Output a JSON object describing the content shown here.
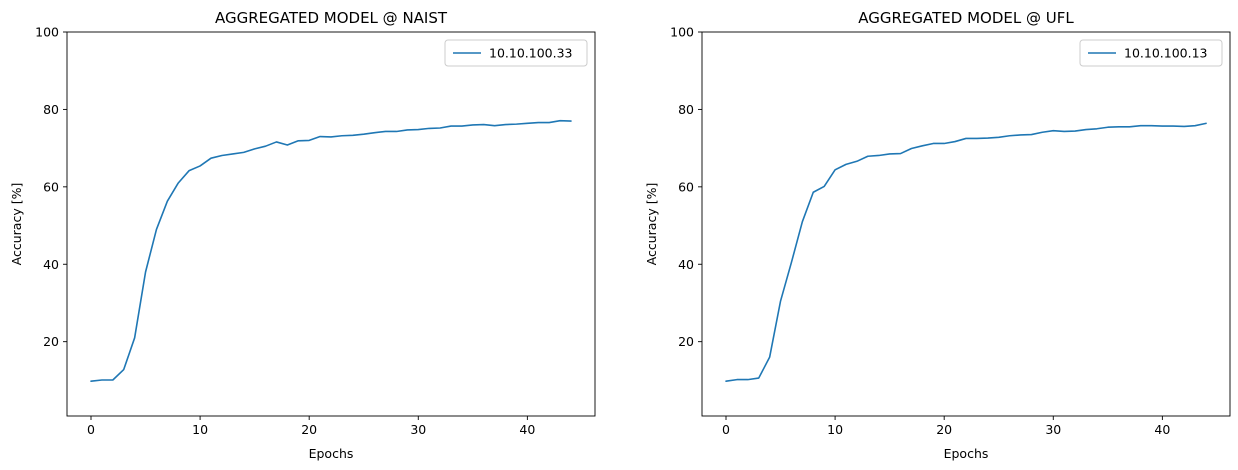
{
  "chart_data": [
    {
      "type": "line",
      "title": "AGGREGATED MODEL @ NAIST",
      "xlabel": "Epochs",
      "ylabel": "Accuracy [%]",
      "xlim": [
        -2.2,
        46.2
      ],
      "ylim": [
        0.8,
        100
      ],
      "xticks": [
        0,
        10,
        20,
        30,
        40
      ],
      "yticks": [
        20,
        40,
        60,
        80,
        100
      ],
      "legend": "top-right",
      "series": [
        {
          "name": "10.10.100.33",
          "color": "#1f77b4",
          "x": [
            0,
            1,
            2,
            3,
            4,
            5,
            6,
            7,
            8,
            9,
            10,
            11,
            12,
            13,
            14,
            15,
            16,
            17,
            18,
            19,
            20,
            21,
            22,
            23,
            24,
            25,
            26,
            27,
            28,
            29,
            30,
            31,
            32,
            33,
            34,
            35,
            36,
            37,
            38,
            39,
            40,
            41,
            42,
            43,
            44
          ],
          "y": [
            9.8,
            10.1,
            10.1,
            12.8,
            21,
            38,
            49,
            56.3,
            61,
            64.2,
            65.4,
            67.4,
            68.1,
            68.5,
            68.9,
            69.8,
            70.5,
            71.6,
            70.8,
            71.9,
            72,
            73,
            72.9,
            73.2,
            73.3,
            73.6,
            74,
            74.3,
            74.3,
            74.7,
            74.8,
            75.1,
            75.2,
            75.7,
            75.7,
            76,
            76.1,
            75.8,
            76.1,
            76.2,
            76.4,
            76.6,
            76.6,
            77.1,
            77
          ]
        }
      ]
    },
    {
      "type": "line",
      "title": "AGGREGATED MODEL @ UFL",
      "xlabel": "Epochs",
      "ylabel": "Accuracy [%]",
      "xlim": [
        -2.2,
        46.2
      ],
      "ylim": [
        0.8,
        100
      ],
      "xticks": [
        0,
        10,
        20,
        30,
        40
      ],
      "yticks": [
        20,
        40,
        60,
        80,
        100
      ],
      "legend": "top-right",
      "series": [
        {
          "name": "10.10.100.13",
          "color": "#1f77b4",
          "x": [
            0,
            1,
            2,
            3,
            4,
            5,
            6,
            7,
            8,
            9,
            10,
            11,
            12,
            13,
            14,
            15,
            16,
            17,
            18,
            19,
            20,
            21,
            22,
            23,
            24,
            25,
            26,
            27,
            28,
            29,
            30,
            31,
            32,
            33,
            34,
            35,
            36,
            37,
            38,
            39,
            40,
            41,
            42,
            43,
            44
          ],
          "y": [
            9.8,
            10.2,
            10.2,
            10.6,
            16,
            30.5,
            40.5,
            51,
            58.6,
            60.1,
            64.4,
            65.8,
            66.6,
            67.9,
            68.1,
            68.5,
            68.6,
            69.9,
            70.6,
            71.2,
            71.2,
            71.7,
            72.5,
            72.5,
            72.6,
            72.8,
            73.2,
            73.4,
            73.5,
            74.1,
            74.5,
            74.3,
            74.4,
            74.8,
            75,
            75.4,
            75.5,
            75.5,
            75.8,
            75.8,
            75.7,
            75.7,
            75.6,
            75.8,
            76.4
          ]
        }
      ]
    }
  ]
}
